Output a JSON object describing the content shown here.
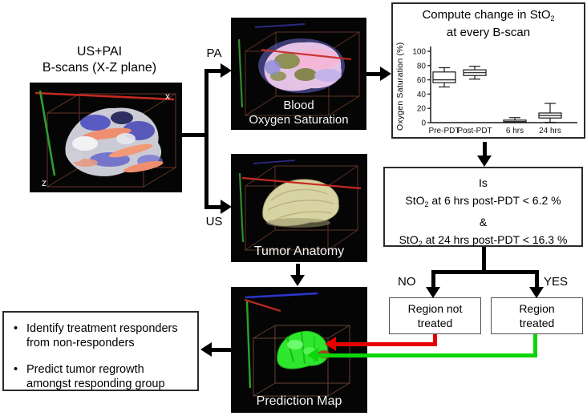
{
  "source_panel": {
    "title_line1": "US+PAI",
    "title_line2": "B-scans (X-Z plane)",
    "axis_x": "x",
    "axis_z": "z"
  },
  "branch_labels": {
    "pa": "PA",
    "us": "US"
  },
  "scenes": {
    "blood_caption_line1": "Blood",
    "blood_caption_line2": "Oxygen Saturation",
    "anatomy_caption": "Tumor Anatomy",
    "prediction_caption": "Prediction Map"
  },
  "compute_panel": {
    "title_pre": "Compute change in StO",
    "title_sub": "2",
    "title_line2": "at every B-scan"
  },
  "chart_data": {
    "type": "box",
    "title": "Compute change in StO2 at every B-scan",
    "ylabel": "Oxygen Saturation (%)",
    "ylim": [
      0,
      100
    ],
    "yticks": [
      0,
      20,
      40,
      60,
      80,
      100
    ],
    "categories": [
      "Pre-PDT",
      "Post-PDT",
      "6 hrs",
      "24 hrs"
    ],
    "series": [
      {
        "label": "Pre-PDT",
        "whislo": 50,
        "q1": 56,
        "med": 60,
        "q3": 71,
        "whishi": 77
      },
      {
        "label": "Post-PDT",
        "whislo": 61,
        "q1": 66,
        "med": 70,
        "q3": 74,
        "whishi": 79
      },
      {
        "label": "6 hrs",
        "whislo": 0,
        "q1": 0.5,
        "med": 1.5,
        "q3": 3.5,
        "whishi": 7
      },
      {
        "label": "24 hrs",
        "whislo": 0.5,
        "q1": 6.5,
        "med": 10,
        "q3": 13.5,
        "whishi": 27
      }
    ],
    "legend": null,
    "grid": false
  },
  "decision": {
    "line1": "Is",
    "line2_pre": "StO",
    "line2_sub": "2",
    "line2_post": " at 6 hrs post-PDT < 6.2 %",
    "line3": "&",
    "line4_pre": "StO",
    "line4_sub": "2",
    "line4_post": " at 24 hrs post-PDT < 16.3 %"
  },
  "branches": {
    "no": "NO",
    "yes": "YES"
  },
  "outcomes": {
    "not_treated_line1": "Region not",
    "not_treated_line2": "treated",
    "treated_line1": "Region",
    "treated_line2": "treated"
  },
  "summary": {
    "bullet1": "Identify treatment responders from non-responders",
    "bullet2": "Predict tumor regrowth amongst responding group"
  },
  "colors": {
    "red_arrow": "#e60000",
    "green_arrow": "#0bd60b",
    "connector_black": "#000000"
  }
}
